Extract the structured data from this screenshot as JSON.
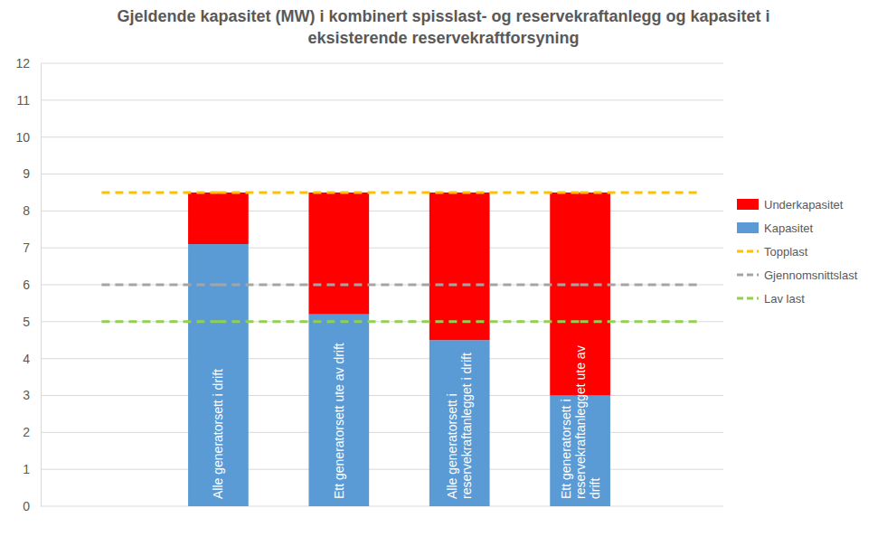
{
  "chart_data": {
    "type": "bar",
    "stacked": true,
    "title": "Gjeldende kapasitet (MW) i kombinert spisslast- og reservekraftanlegg og kapasitet i eksisterende reservekraftforsyning",
    "categories": [
      "Alle generatorsett i drift",
      "Ett generatorsett ute av drift",
      "Alle generatorsett i reservekraftanlegget i drift",
      "Ett generatorsett i reservekraftanlegget ute av drift"
    ],
    "series": [
      {
        "name": "Kapasitet",
        "type": "bar",
        "color": "#5b9bd5",
        "values": [
          7.1,
          5.2,
          4.5,
          3
        ]
      },
      {
        "name": "Underkapasitet",
        "type": "bar",
        "color": "#ff0000",
        "values": [
          1.4,
          3.3,
          4.0,
          5.5
        ]
      },
      {
        "name": "Topplast",
        "type": "line",
        "color": "#ffc000",
        "line_style": "dashed",
        "values": [
          8.5,
          8.5,
          8.5,
          8.5
        ]
      },
      {
        "name": "Gjennomsnittslast",
        "type": "line",
        "color": "#a5a5a5",
        "line_style": "dashed",
        "values": [
          6,
          6,
          6,
          6
        ]
      },
      {
        "name": "Lav last",
        "type": "line",
        "color": "#92d050",
        "line_style": "dashed",
        "values": [
          5,
          5,
          5,
          5
        ]
      }
    ],
    "ylim": [
      0,
      12
    ],
    "yticks": [
      0,
      1,
      2,
      3,
      4,
      5,
      6,
      7,
      8,
      9,
      10,
      11,
      12
    ],
    "grid": true,
    "legend": "right"
  }
}
